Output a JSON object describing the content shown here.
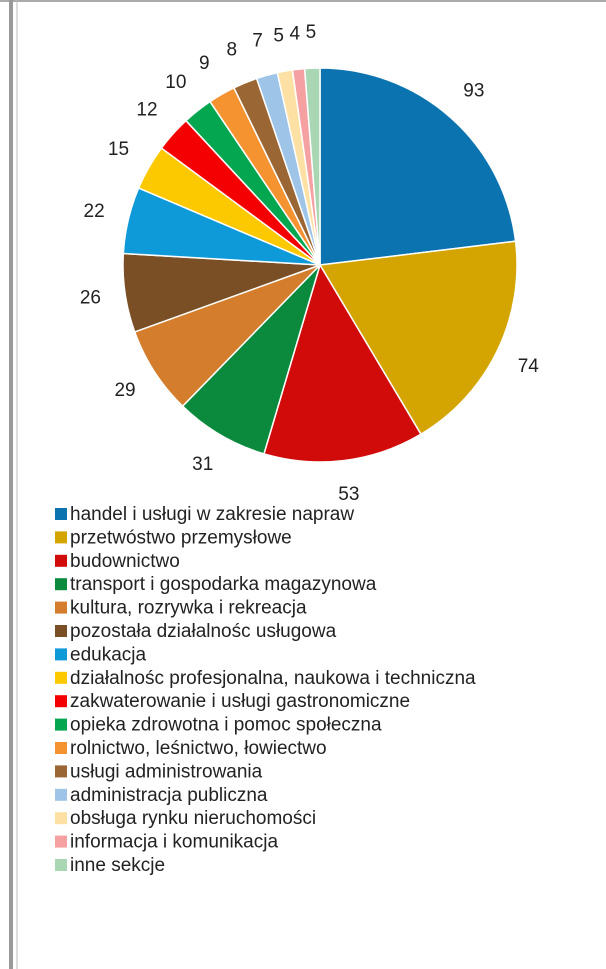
{
  "chart_data": {
    "type": "pie",
    "categories": [
      "handel i usługi w zakresie napraw",
      "przetwóstwo przemysłowe",
      "budownictwo",
      "transport i gospodarka magazynowa",
      "kultura, rozrywka i rekreacja",
      "pozostała działalnośc usługowa",
      "edukacja",
      "działalnośc profesjonalna, naukowa i techniczna",
      "zakwaterowanie i usługi gastronomiczne",
      "opieka zdrowotna i pomoc społeczna",
      "rolnictwo, leśnictwo, łowiectwo",
      "usługi administrowania",
      "administracja publiczna",
      "obsługa rynku nieruchomości",
      "informacja i komunikacja",
      "inne sekcje"
    ],
    "values": [
      93,
      74,
      53,
      31,
      29,
      26,
      22,
      15,
      12,
      10,
      9,
      8,
      7,
      5,
      4,
      5
    ],
    "colors": [
      "#0b74b0",
      "#d4a500",
      "#d10a0a",
      "#0b8a3d",
      "#d47d2c",
      "#7b4f25",
      "#0e9ad9",
      "#fcc800",
      "#f40000",
      "#05a650",
      "#f69331",
      "#9a6633",
      "#9ec4e8",
      "#fde1a4",
      "#f6a1a1",
      "#a9d6b3"
    ],
    "legend": "bottom"
  }
}
